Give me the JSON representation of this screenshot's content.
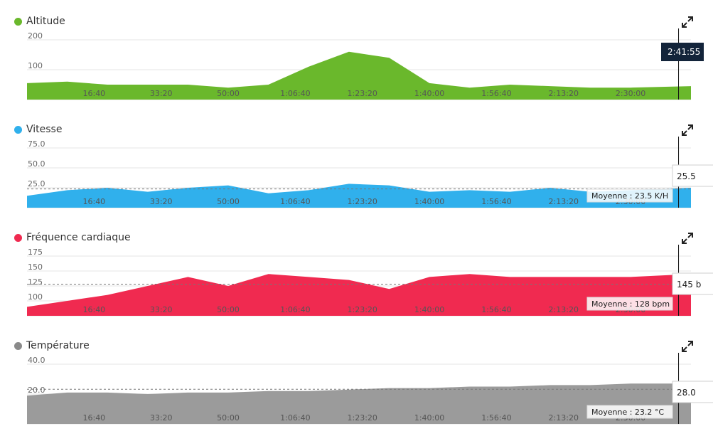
{
  "chart_data": [
    {
      "type": "area",
      "title": "Altitude",
      "color": "#6ab82c",
      "ylim": [
        0,
        200
      ],
      "yticks": [
        "0",
        "100",
        "200"
      ],
      "yticks_values": [
        0,
        100,
        200
      ],
      "cursor_label": "2:41:55",
      "average_label": "",
      "x": [
        0,
        600,
        1200,
        1800,
        2400,
        3000,
        3600,
        4200,
        4800,
        5400,
        6000,
        6600,
        7200,
        7800,
        8400,
        9000,
        9900
      ],
      "values": [
        55,
        60,
        50,
        50,
        50,
        40,
        50,
        110,
        160,
        140,
        55,
        40,
        50,
        45,
        40,
        40,
        45
      ]
    },
    {
      "type": "area",
      "title": "Vitesse",
      "color": "#30b0ec",
      "ylim": [
        0,
        75
      ],
      "yticks": [
        "0.0",
        "25.0",
        "50.0",
        "75.0"
      ],
      "yticks_values": [
        0,
        25,
        50,
        75
      ],
      "average_value": 23.5,
      "average_label": "Moyenne : 23.5 K/H",
      "cursor_label": "25.5",
      "x": [
        0,
        600,
        1200,
        1800,
        2400,
        3000,
        3600,
        4200,
        4800,
        5400,
        6000,
        6600,
        7200,
        7800,
        8400,
        9000,
        9900
      ],
      "values": [
        15,
        22,
        25,
        20,
        25,
        28,
        18,
        22,
        30,
        28,
        20,
        22,
        20,
        25,
        20,
        22,
        25
      ]
    },
    {
      "type": "area",
      "title": "Fréquence cardiaque",
      "color": "#f02a50",
      "ylim": [
        75,
        175
      ],
      "yticks": [
        "75",
        "100",
        "125",
        "150",
        "175"
      ],
      "yticks_values": [
        75,
        100,
        125,
        150,
        175
      ],
      "average_value": 128,
      "average_label": "Moyenne : 128 bpm",
      "cursor_label": "145 b",
      "x": [
        0,
        600,
        1200,
        1800,
        2400,
        3000,
        3600,
        4200,
        4800,
        5400,
        6000,
        6600,
        7200,
        7800,
        8400,
        9000,
        9900
      ],
      "values": [
        90,
        100,
        110,
        125,
        140,
        125,
        145,
        140,
        135,
        120,
        140,
        145,
        140,
        140,
        140,
        140,
        145
      ]
    },
    {
      "type": "area",
      "title": "Température",
      "color": "#9b9b9b",
      "ylim": [
        0,
        40
      ],
      "yticks": [
        "0.0",
        "20.0",
        "40.0"
      ],
      "yticks_values": [
        0,
        20,
        40
      ],
      "average_value": 23.2,
      "average_label": "Moyenne : 23.2 °C",
      "cursor_label": "28.0",
      "x": [
        0,
        600,
        1200,
        1800,
        2400,
        3000,
        3600,
        4200,
        4800,
        5400,
        6000,
        6600,
        7200,
        7800,
        8400,
        9000,
        9900
      ],
      "values": [
        19,
        21,
        21,
        20,
        21,
        21,
        22,
        22,
        23,
        24,
        24,
        25,
        25,
        26,
        26,
        27,
        27
      ]
    }
  ],
  "x_axis": {
    "labels": [
      "16:40",
      "33:20",
      "50:00",
      "1:06:40",
      "1:23:20",
      "1:40:00",
      "1:56:40",
      "2:13:20",
      "2:30:00"
    ],
    "values": [
      1000,
      2000,
      3000,
      4000,
      5000,
      6000,
      7000,
      8000,
      9000
    ],
    "xlim": [
      0,
      9900
    ],
    "cursor": 9715
  }
}
